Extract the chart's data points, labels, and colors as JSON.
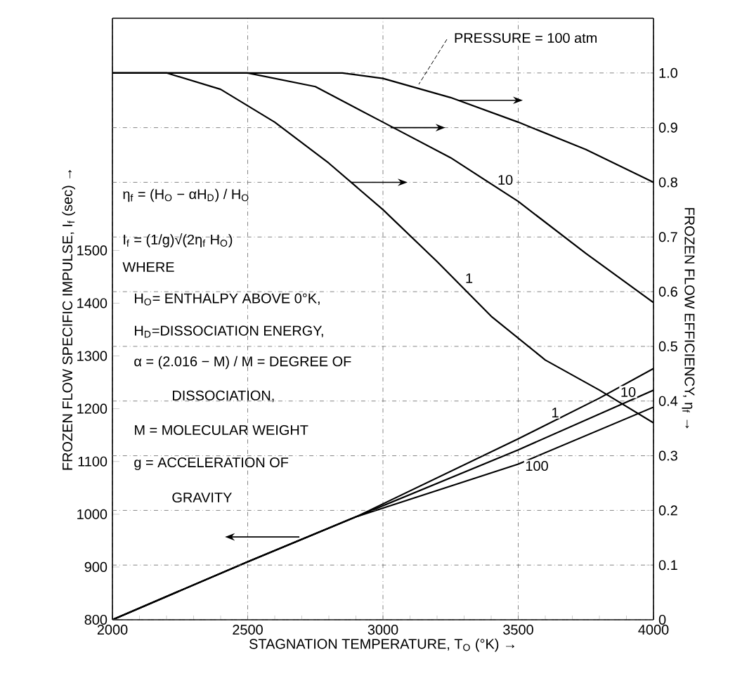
{
  "chart_data": {
    "type": "line",
    "xlabel": "STAGNATION TEMPERATURE, T$_{O}$ (°K) →",
    "ylabel": "FROZEN FLOW SPECIFIC IMPULSE, I$_{f}$ (sec) →",
    "y2label": "FROZEN FLOW EFFICIENCY, η$_{f}$ →",
    "xlim": [
      2000,
      4000
    ],
    "xticks": [
      2000,
      2500,
      3000,
      3500,
      4000
    ],
    "ylim": [
      800,
      1940
    ],
    "yticks": [
      800,
      900,
      1000,
      1100,
      1200,
      1300,
      1400,
      1500
    ],
    "y2lim": [
      0,
      1.1
    ],
    "y2ticks": [
      0,
      0.1,
      0.2,
      0.3,
      0.4,
      0.5,
      0.6,
      0.7,
      0.8,
      0.9,
      {
        "value": 1,
        "label": "1.0"
      }
    ],
    "grid": true,
    "series": [
      {
        "name": "PRESSURE = 100 atm",
        "color": "#000000",
        "axis": "y2",
        "x": [
          2000,
          2850,
          3000,
          3250,
          3500,
          3750,
          4000
        ],
        "values": [
          1.0,
          1.0,
          0.99,
          0.955,
          0.91,
          0.86,
          0.8
        ]
      },
      {
        "name": "10",
        "color": "#000000",
        "axis": "y2",
        "x": [
          2000,
          2500,
          2750,
          3000,
          3250,
          3500,
          3750,
          4000
        ],
        "values": [
          1.0,
          1.0,
          0.975,
          0.91,
          0.845,
          0.765,
          0.67,
          0.58
        ]
      },
      {
        "name": "1",
        "color": "#000000",
        "axis": "y2",
        "x": [
          2000,
          2200,
          2400,
          2600,
          2800,
          3000,
          3200,
          3400,
          3600,
          3800,
          4000
        ],
        "values": [
          1.0,
          1.0,
          0.97,
          0.91,
          0.835,
          0.75,
          0.655,
          0.555,
          0.475,
          0.42,
          0.36
        ]
      },
      {
        "name": "10",
        "color": "#000000",
        "x": [
          2000,
          2500,
          2900,
          3500,
          4000
        ],
        "values": [
          800,
          910,
          995,
          1122,
          1235
        ]
      },
      {
        "name": "1",
        "color": "#000000",
        "x": [
          2000,
          2500,
          2900,
          3500,
          3800,
          4000
        ],
        "values": [
          800,
          910,
          995,
          1143,
          1220,
          1276
        ]
      },
      {
        "name": "100",
        "color": "#000000",
        "x": [
          2000,
          2500,
          2900,
          3500,
          4000
        ],
        "values": [
          800,
          910,
          995,
          1095,
          1203
        ]
      }
    ],
    "annotations": [
      "η$_{f}$ = (H$_{O}$ − αH$_{D}$) / H$_{O}$",
      "I$_{f}$ = (1/g)√(2η$_{f}$ H$_{O}$)",
      "WHERE",
      "H$_{O}$= ENTHALPY ABOVE 0°K,",
      "H$_{D}$=DISSOCIATION ENERGY,",
      "α = (2.016 − M) / M = DEGREE OF",
      "DISSOCIATION,",
      "M = MOLECULAR WEIGHT",
      "g = ACCELERATION OF",
      "GRAVITY"
    ]
  }
}
